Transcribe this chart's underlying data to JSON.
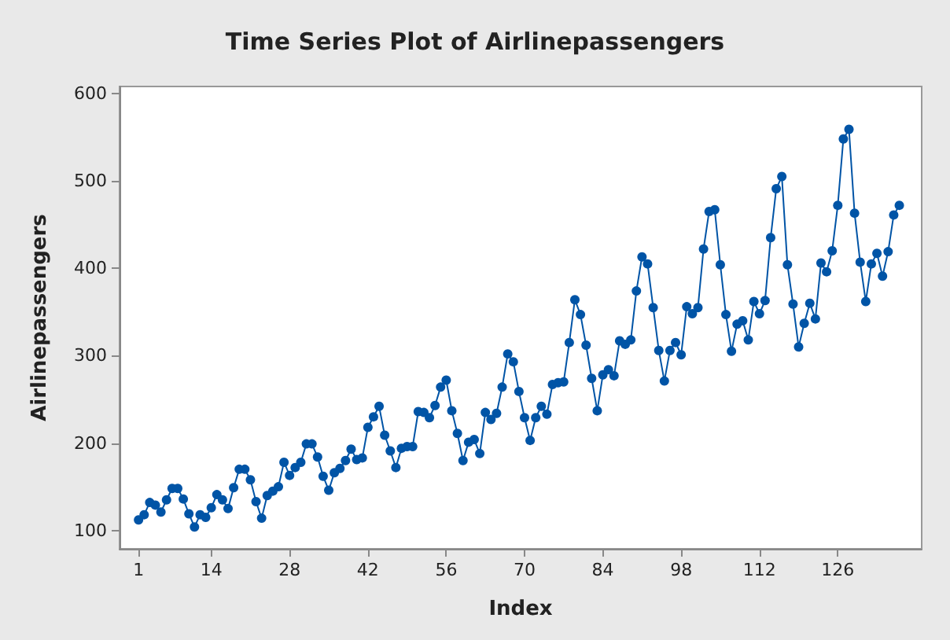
{
  "chart_data": {
    "type": "line",
    "title": "Time Series Plot of Airlinepassengers",
    "xlabel": "Index",
    "ylabel": "Airlinepassengers",
    "x": [
      1,
      2,
      3,
      4,
      5,
      6,
      7,
      8,
      9,
      10,
      11,
      12,
      13,
      14,
      15,
      16,
      17,
      18,
      19,
      20,
      21,
      22,
      23,
      24,
      25,
      26,
      27,
      28,
      29,
      30,
      31,
      32,
      33,
      34,
      35,
      36,
      37,
      38,
      39,
      40,
      41,
      42,
      43,
      44,
      45,
      46,
      47,
      48,
      49,
      50,
      51,
      52,
      53,
      54,
      55,
      56,
      57,
      58,
      59,
      60,
      61,
      62,
      63,
      64,
      65,
      66,
      67,
      68,
      69,
      70,
      71,
      72,
      73,
      74,
      75,
      76,
      77,
      78,
      79,
      80,
      81,
      82,
      83,
      84,
      85,
      86,
      87,
      88,
      89,
      90,
      91,
      92,
      93,
      94,
      95,
      96,
      97,
      98,
      99,
      100,
      101,
      102,
      103,
      104,
      105,
      106,
      107,
      108,
      109,
      110,
      111,
      112,
      113,
      114,
      115,
      116,
      117,
      118,
      119,
      120,
      121,
      122,
      123,
      124,
      125,
      126,
      127,
      128,
      129,
      130,
      131,
      132,
      133,
      134,
      135,
      136,
      137
    ],
    "series": [
      {
        "color": "#0054a6",
        "values": [
          112,
          118,
          132,
          129,
          121,
          135,
          148,
          148,
          136,
          119,
          104,
          118,
          115,
          126,
          141,
          135,
          125,
          149,
          170,
          170,
          158,
          133,
          114,
          140,
          145,
          150,
          178,
          163,
          172,
          178,
          199,
          199,
          184,
          162,
          146,
          166,
          171,
          180,
          193,
          181,
          183,
          218,
          230,
          242,
          209,
          191,
          172,
          194,
          196,
          196,
          236,
          235,
          229,
          243,
          264,
          272,
          237,
          211,
          180,
          201,
          204,
          188,
          235,
          227,
          234,
          264,
          302,
          293,
          259,
          229,
          203,
          229,
          242,
          233,
          267,
          269,
          270,
          315,
          364,
          347,
          312,
          274,
          237,
          278,
          284,
          277,
          317,
          313,
          318,
          374,
          413,
          405,
          355,
          306,
          271,
          306,
          315,
          301,
          356,
          348,
          355,
          422,
          465,
          467,
          404,
          347,
          305,
          336,
          340,
          318,
          362,
          348,
          363,
          435,
          491,
          505,
          404,
          359,
          310,
          337,
          360,
          342,
          406,
          396,
          420,
          472,
          548,
          559,
          463,
          407,
          362,
          405,
          417,
          391,
          419,
          461,
          472
        ]
      }
    ],
    "xlim": [
      -2.4,
      141
    ],
    "xticks": [
      1,
      14,
      28,
      42,
      56,
      70,
      84,
      98,
      112,
      126
    ],
    "ylim": [
      79,
      608
    ],
    "yticks": [
      100,
      200,
      300,
      400,
      500,
      600
    ],
    "grid": false,
    "marker": "circle",
    "line_style": "solid"
  }
}
